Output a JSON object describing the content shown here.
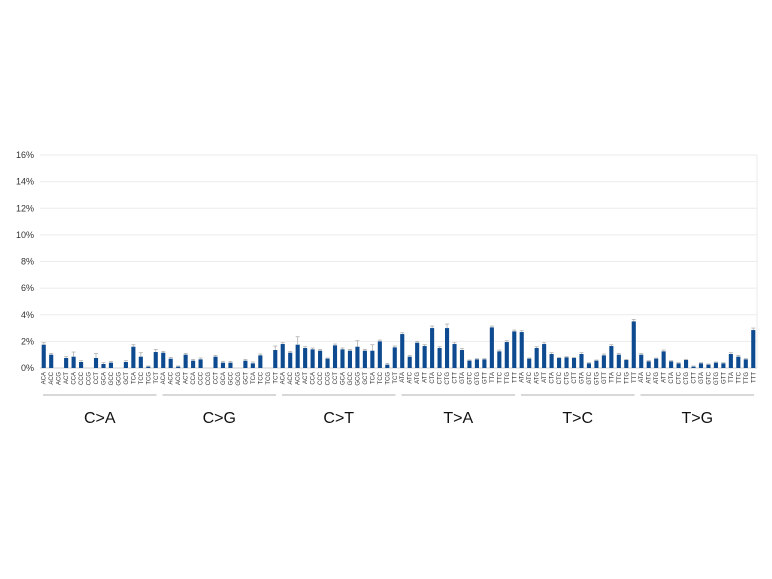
{
  "chart_data": {
    "type": "bar",
    "y_axis": {
      "min": 0,
      "max": 16,
      "tick_step": 2,
      "tick_labels": [
        "0%",
        "2%",
        "4%",
        "6%",
        "8%",
        "10%",
        "12%",
        "14%",
        "16%"
      ]
    },
    "grid": true,
    "bar_color": "#0d4a8f",
    "error_bar_color": "#b0b0b0",
    "groups": [
      {
        "label": "C>A",
        "contexts": [
          "ACA",
          "ACC",
          "ACG",
          "ACT",
          "CCA",
          "CCC",
          "CCG",
          "CCT",
          "GCA",
          "GCC",
          "GCG",
          "GCT",
          "TCA",
          "TCC",
          "TCG",
          "TCT"
        ],
        "values": [
          1.75,
          1.0,
          0.0,
          0.75,
          0.85,
          0.45,
          0.0,
          0.75,
          0.3,
          0.4,
          0.0,
          0.45,
          1.6,
          0.85,
          0.1,
          1.2
        ],
        "errors": [
          0.15,
          0.1,
          0.0,
          0.1,
          0.35,
          0.1,
          0.0,
          0.35,
          0.1,
          0.1,
          0.0,
          0.1,
          0.15,
          0.3,
          0.05,
          0.2
        ]
      },
      {
        "label": "C>G",
        "contexts": [
          "ACA",
          "ACC",
          "ACG",
          "ACT",
          "CCA",
          "CCC",
          "CCG",
          "CCT",
          "GCA",
          "GCC",
          "GCG",
          "GCT",
          "TCA",
          "TCC",
          "TCG",
          "TCT"
        ],
        "values": [
          1.15,
          0.7,
          0.1,
          1.0,
          0.55,
          0.65,
          0.0,
          0.85,
          0.4,
          0.4,
          0.0,
          0.55,
          0.35,
          0.95,
          0.0,
          1.35
        ],
        "errors": [
          0.1,
          0.1,
          0.05,
          0.1,
          0.1,
          0.1,
          0.0,
          0.1,
          0.1,
          0.1,
          0.0,
          0.1,
          0.1,
          0.1,
          0.0,
          0.3
        ]
      },
      {
        "label": "C>T",
        "contexts": [
          "ACA",
          "ACC",
          "ACG",
          "ACT",
          "CCA",
          "CCC",
          "CCG",
          "CCT",
          "GCA",
          "GCC",
          "GCG",
          "GCT",
          "TCA",
          "TCC",
          "TCG",
          "TCT"
        ],
        "values": [
          1.8,
          1.15,
          1.75,
          1.5,
          1.4,
          1.3,
          0.7,
          1.7,
          1.4,
          1.3,
          1.6,
          1.3,
          1.3,
          2.0,
          0.25,
          1.55
        ],
        "errors": [
          0.1,
          0.1,
          0.6,
          0.1,
          0.1,
          0.1,
          0.05,
          0.1,
          0.1,
          0.1,
          0.45,
          0.1,
          0.45,
          0.1,
          0.1,
          0.1
        ]
      },
      {
        "label": "T>A",
        "contexts": [
          "ATA",
          "ATC",
          "ATG",
          "ATT",
          "CTA",
          "CTC",
          "CTG",
          "CTT",
          "GTA",
          "GTC",
          "GTG",
          "GTT",
          "TTA",
          "TTC",
          "TTG",
          "TTT"
        ],
        "values": [
          2.55,
          0.85,
          1.9,
          1.65,
          3.0,
          1.5,
          3.0,
          1.8,
          1.35,
          0.55,
          0.65,
          0.65,
          3.05,
          1.25,
          1.95,
          2.75
        ],
        "errors": [
          0.1,
          0.1,
          0.1,
          0.1,
          0.15,
          0.1,
          0.3,
          0.1,
          0.1,
          0.05,
          0.05,
          0.05,
          0.1,
          0.1,
          0.1,
          0.1
        ]
      },
      {
        "label": "T>C",
        "contexts": [
          "ATA",
          "ATC",
          "ATG",
          "ATT",
          "CTA",
          "CTC",
          "CTG",
          "CTT",
          "GTA",
          "GTC",
          "GTG",
          "GTT",
          "TTA",
          "TTC",
          "TTG",
          "TTT"
        ],
        "values": [
          2.7,
          0.7,
          1.5,
          1.8,
          1.05,
          0.75,
          0.8,
          0.75,
          1.05,
          0.35,
          0.55,
          0.95,
          1.65,
          1.0,
          0.6,
          3.5
        ],
        "errors": [
          0.1,
          0.05,
          0.1,
          0.1,
          0.1,
          0.05,
          0.05,
          0.05,
          0.1,
          0.05,
          0.05,
          0.1,
          0.1,
          0.1,
          0.05,
          0.15
        ]
      },
      {
        "label": "T>G",
        "contexts": [
          "ATA",
          "ATC",
          "ATG",
          "ATT",
          "CTA",
          "CTC",
          "CTG",
          "CTT",
          "GTA",
          "GTC",
          "GTG",
          "GTT",
          "TTA",
          "TTC",
          "TTG",
          "TTT"
        ],
        "values": [
          1.0,
          0.5,
          0.7,
          1.25,
          0.5,
          0.35,
          0.6,
          0.1,
          0.35,
          0.25,
          0.4,
          0.35,
          1.05,
          0.85,
          0.65,
          2.85
        ],
        "errors": [
          0.1,
          0.05,
          0.05,
          0.1,
          0.05,
          0.05,
          0.05,
          0.05,
          0.05,
          0.05,
          0.05,
          0.05,
          0.1,
          0.1,
          0.05,
          0.15
        ]
      }
    ]
  }
}
